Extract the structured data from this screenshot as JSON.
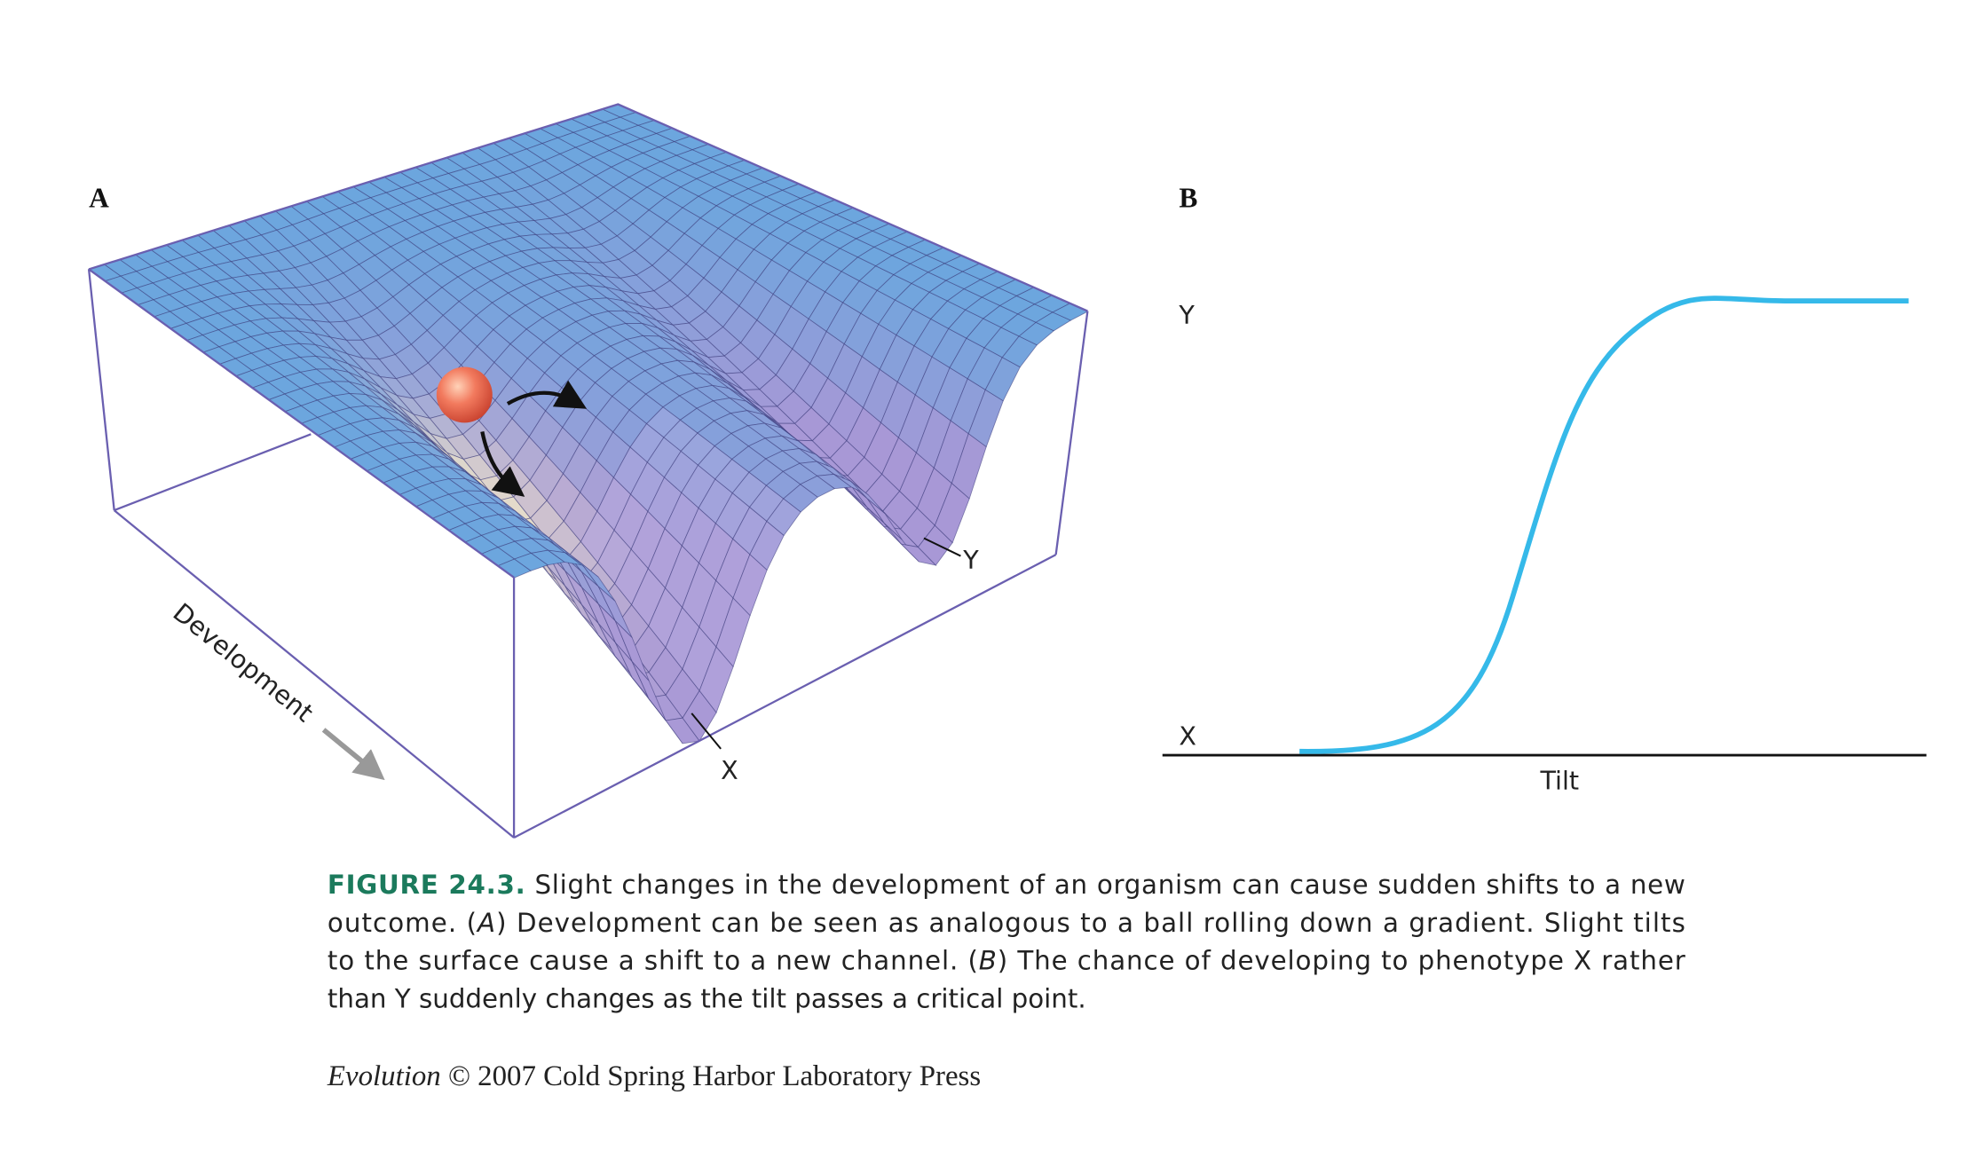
{
  "panel_a": {
    "label": "A",
    "axis_label": "Development",
    "valley_x": "X",
    "valley_y": "Y"
  },
  "panel_b": {
    "label": "B",
    "y_top": "Y",
    "y_bottom": "X",
    "x_label": "Tilt"
  },
  "caption": {
    "figure": "FIGURE 24.3.",
    "line1": "Slight changes in the development of an organism can cause sudden shifts to a new",
    "line2a": "outcome. (",
    "line2b": "A",
    "line2c": ") Development can be seen as analogous to a ball rolling down a gradient. Slight tilts",
    "line3a": "to the surface cause a shift to a new channel. (",
    "line3b": "B",
    "line3c": ") The chance of developing to phenotype X rather",
    "line4": "than Y suddenly changes as the tilt passes a critical point."
  },
  "credit": {
    "title": "Evolution",
    "text": "© 2007 Cold Spring Harbor Laboratory Press"
  }
}
